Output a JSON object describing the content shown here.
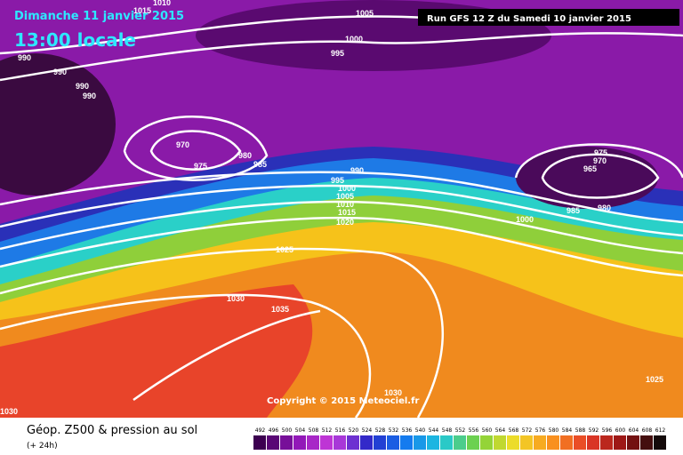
{
  "header": {
    "date": "Dimanche 11 janvier 2015",
    "time": "13:00 locale",
    "run": "Run GFS 12 Z du Samedi 10 janvier 2015"
  },
  "map": {
    "isobar_labels": [
      "1010",
      "1015",
      "1005",
      "1000",
      "995",
      "990",
      "990",
      "990",
      "990",
      "970",
      "975",
      "980",
      "985",
      "990",
      "995",
      "1000",
      "1005",
      "1010",
      "1015",
      "1020",
      "1025",
      "1030",
      "1035",
      "1030",
      "1030",
      "975",
      "970",
      "965",
      "985",
      "980",
      "1000",
      "1025"
    ],
    "copyright": "Copyright © 2015 Meteociel.fr"
  },
  "footer": {
    "title": "Géop. Z500 & pression au sol",
    "subtitle": "(+ 24h)",
    "scale": [
      492,
      496,
      500,
      504,
      508,
      512,
      516,
      520,
      524,
      528,
      532,
      536,
      540,
      544,
      548,
      552,
      556,
      560,
      564,
      568,
      572,
      576,
      580,
      584,
      588,
      592,
      596,
      600,
      604,
      608,
      612
    ]
  }
}
